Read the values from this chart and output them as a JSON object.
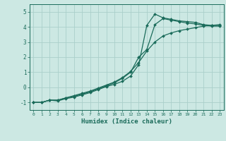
{
  "xlabel": "Humidex (Indice chaleur)",
  "bg_color": "#cce8e3",
  "grid_color": "#aacfca",
  "line_color": "#1a6b5a",
  "xlim": [
    -0.5,
    23.5
  ],
  "ylim": [
    -1.5,
    5.5
  ],
  "xticks": [
    0,
    1,
    2,
    3,
    4,
    5,
    6,
    7,
    8,
    9,
    10,
    11,
    12,
    13,
    14,
    15,
    16,
    17,
    18,
    19,
    20,
    21,
    22,
    23
  ],
  "yticks": [
    -1,
    0,
    1,
    2,
    3,
    4,
    5
  ],
  "line1_x": [
    0,
    1,
    2,
    3,
    4,
    5,
    6,
    7,
    8,
    9,
    10,
    11,
    12,
    13,
    14,
    15,
    16,
    17,
    18,
    19,
    20,
    21,
    22,
    23
  ],
  "line1_y": [
    -1,
    -1,
    -0.85,
    -0.9,
    -0.75,
    -0.65,
    -0.5,
    -0.35,
    -0.15,
    0.05,
    0.2,
    0.4,
    0.75,
    1.5,
    4.1,
    4.85,
    4.6,
    4.5,
    4.4,
    4.35,
    4.3,
    4.15,
    4.1,
    4.1
  ],
  "line2_x": [
    0,
    1,
    2,
    3,
    4,
    5,
    6,
    7,
    8,
    9,
    10,
    11,
    12,
    13,
    14,
    15,
    16,
    17,
    18,
    19,
    20,
    21,
    22,
    23
  ],
  "line2_y": [
    -1,
    -1,
    -0.85,
    -0.85,
    -0.7,
    -0.6,
    -0.45,
    -0.3,
    -0.1,
    0.1,
    0.3,
    0.6,
    1.0,
    2.0,
    2.5,
    4.15,
    4.55,
    4.45,
    4.35,
    4.25,
    4.2,
    4.1,
    4.05,
    4.05
  ],
  "line3_x": [
    0,
    1,
    2,
    3,
    4,
    5,
    6,
    7,
    8,
    9,
    10,
    11,
    12,
    13,
    14,
    15,
    16,
    17,
    18,
    19,
    20,
    21,
    22,
    23
  ],
  "line3_y": [
    -1,
    -1,
    -0.85,
    -0.85,
    -0.7,
    -0.55,
    -0.4,
    -0.25,
    -0.05,
    0.15,
    0.35,
    0.65,
    1.05,
    1.65,
    2.4,
    3.0,
    3.4,
    3.6,
    3.75,
    3.85,
    3.95,
    4.05,
    4.1,
    4.15
  ]
}
